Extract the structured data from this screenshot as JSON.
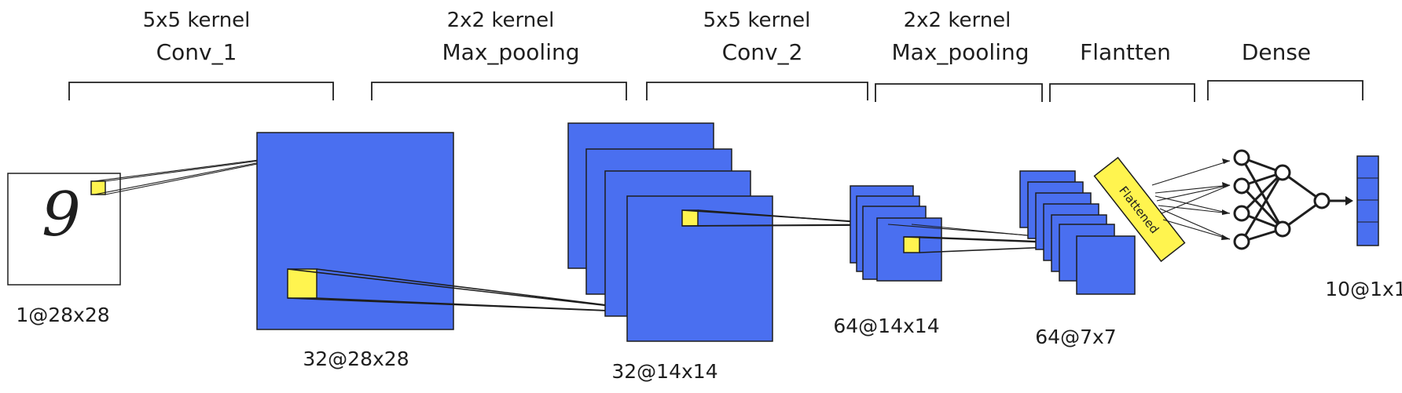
{
  "stages": [
    {
      "kernel": "5x5 kernel",
      "name": "Conv_1"
    },
    {
      "kernel": "2x2 kernel",
      "name": "Max_pooling"
    },
    {
      "kernel": "5x5 kernel",
      "name": "Conv_2"
    },
    {
      "kernel": "2x2 kernel",
      "name": "Max_pooling"
    },
    {
      "kernel": "",
      "name": "Flantten"
    },
    {
      "kernel": "",
      "name": "Dense"
    }
  ],
  "input_digit": "9",
  "shapes": {
    "input": "1@28x28",
    "conv1": "32@28x28",
    "pool1": "32@14x14",
    "conv2": "64@14x14",
    "pool2": "64@7x7",
    "output": "10@1x1"
  },
  "flattened_label": "Flattened",
  "colors": {
    "feature_map": "#4a6ff0",
    "kernel": "#fff44f",
    "stroke": "#1e1e1e"
  }
}
